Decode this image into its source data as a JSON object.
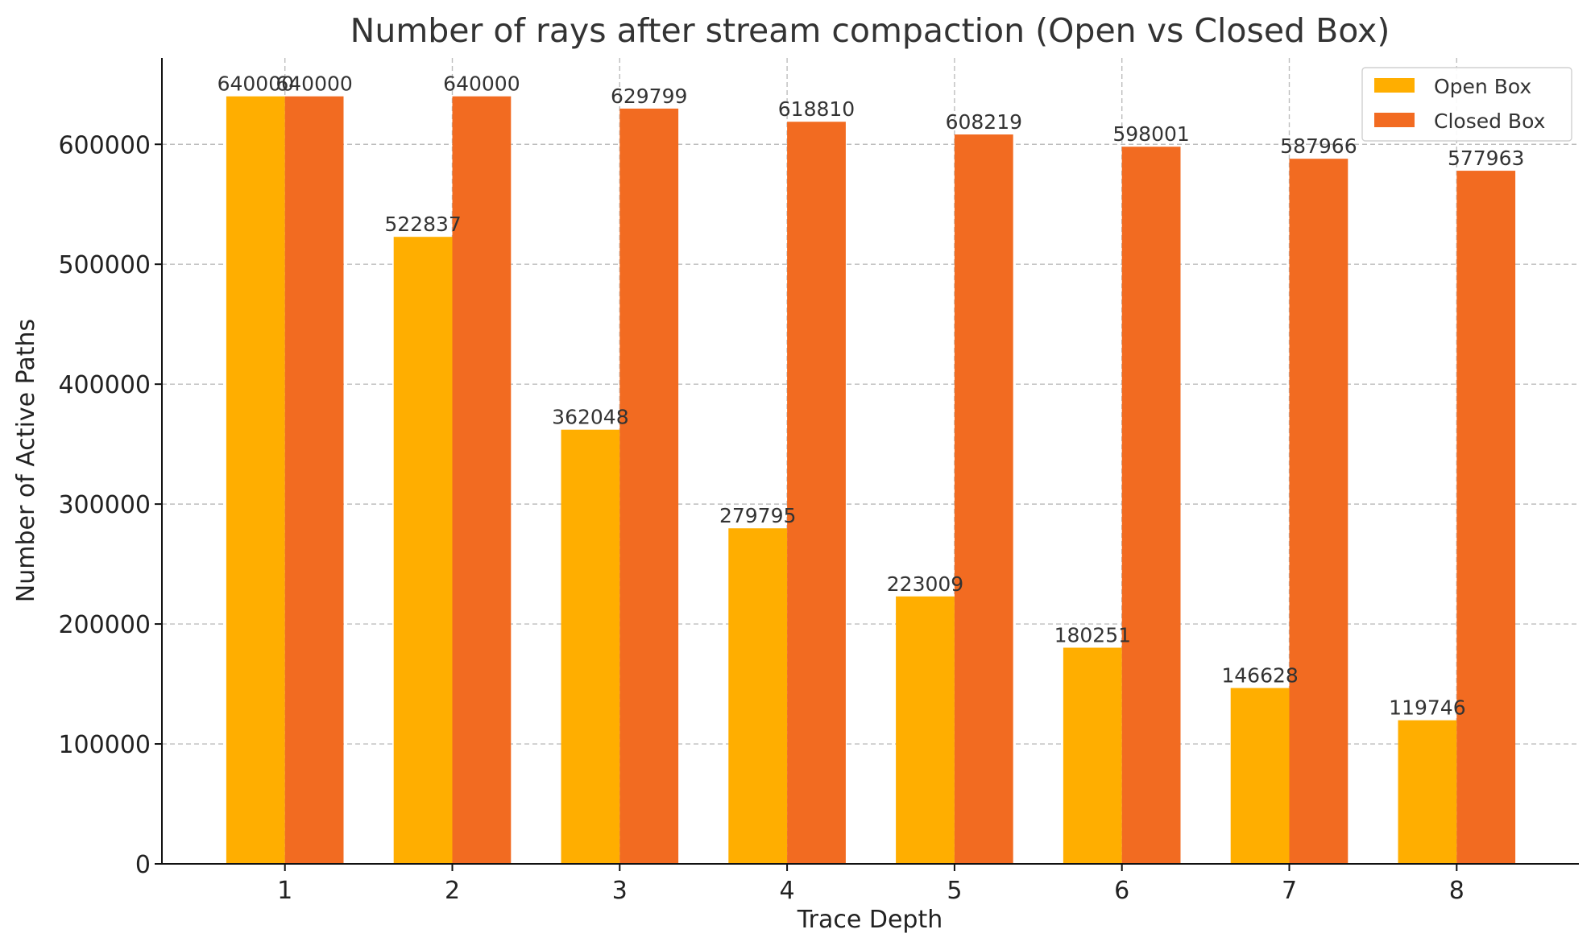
{
  "chart_data": {
    "type": "bar",
    "title": "Number of rays after stream compaction (Open vs Closed Box)",
    "xlabel": "Trace Depth",
    "ylabel": "Number of Active Paths",
    "categories": [
      "1",
      "2",
      "3",
      "4",
      "5",
      "6",
      "7",
      "8"
    ],
    "series": [
      {
        "name": "Open Box",
        "color": "#FFAE00",
        "values": [
          640000,
          522837,
          362048,
          279795,
          223009,
          180251,
          146628,
          119746
        ],
        "labels": [
          "640000",
          "522837",
          "362048",
          "279795",
          "223009",
          "180251",
          "146628",
          "119746"
        ]
      },
      {
        "name": "Closed Box",
        "color": "#F26B21",
        "values": [
          640000,
          640000,
          629799,
          618810,
          608219,
          598001,
          587966,
          577963
        ],
        "labels": [
          "640000",
          "640000",
          "629799",
          "618810",
          "608219",
          "598001",
          "587966",
          "577963"
        ]
      }
    ],
    "ylim": [
      0,
      672000
    ],
    "yticks": [
      0,
      100000,
      200000,
      300000,
      400000,
      500000,
      600000
    ],
    "ytick_labels": [
      "0",
      "100000",
      "200000",
      "300000",
      "400000",
      "500000",
      "600000"
    ],
    "grid": true,
    "legend_position": "top-right"
  }
}
